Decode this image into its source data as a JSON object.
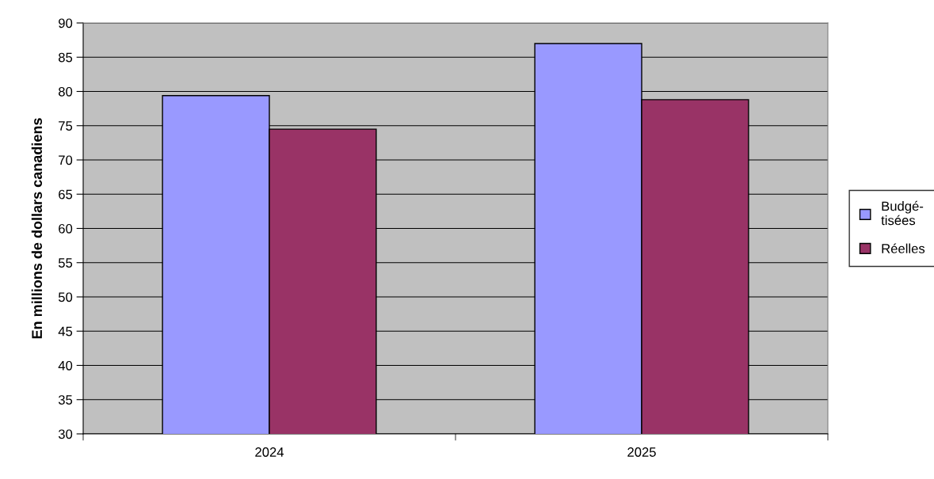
{
  "chart_data": {
    "type": "bar",
    "ylabel": "En millions de dollars canadiens",
    "categories": [
      "2024",
      "2025"
    ],
    "series": [
      {
        "name": "Budgé-\ntisées",
        "color": "#9999ff",
        "values": [
          79.4,
          87.0
        ]
      },
      {
        "name": "Réelles",
        "color": "#993366",
        "values": [
          74.5,
          78.8
        ]
      }
    ],
    "ylim": [
      30,
      90
    ],
    "yticks": [
      30,
      35,
      40,
      45,
      50,
      55,
      60,
      65,
      70,
      75,
      80,
      85,
      90
    ],
    "grid": "y",
    "legend": "right"
  }
}
